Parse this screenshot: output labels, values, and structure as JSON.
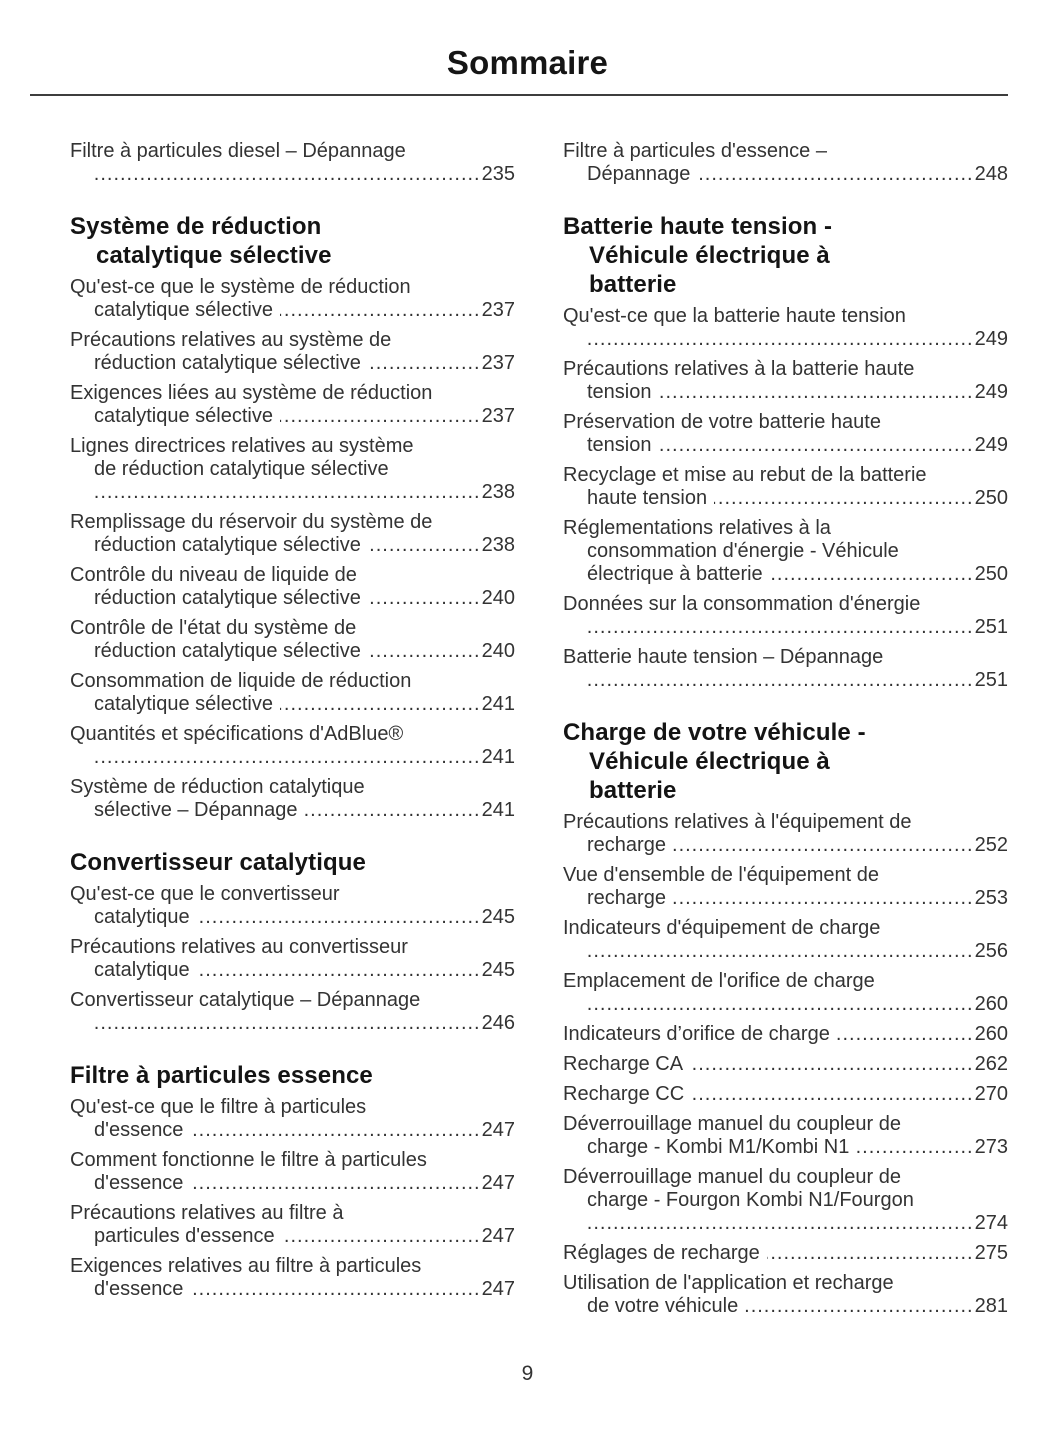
{
  "page": {
    "title": "Sommaire",
    "number": "9"
  },
  "toc": {
    "columns": [
      {
        "blocks": [
          {
            "type": "entry",
            "lines": [
              "Filtre à particules diesel – Dépannage",
              ""
            ],
            "page": "235"
          },
          {
            "type": "heading",
            "lines": [
              "Système de réduction",
              "catalytique sélective"
            ]
          },
          {
            "type": "entry",
            "lines": [
              "Qu'est-ce que le système de réduction",
              "catalytique sélective"
            ],
            "page": "237"
          },
          {
            "type": "entry",
            "lines": [
              "Précautions relatives au système de",
              "réduction catalytique sélective"
            ],
            "page": "237"
          },
          {
            "type": "entry",
            "lines": [
              "Exigences liées au système de réduction",
              "catalytique sélective"
            ],
            "page": "237"
          },
          {
            "type": "entry",
            "lines": [
              "Lignes directrices relatives au système",
              "de réduction catalytique sélective",
              ""
            ],
            "page": "238"
          },
          {
            "type": "entry",
            "lines": [
              "Remplissage du réservoir du système de",
              "réduction catalytique sélective"
            ],
            "page": "238"
          },
          {
            "type": "entry",
            "lines": [
              "Contrôle du niveau de liquide de",
              "réduction catalytique sélective"
            ],
            "page": "240"
          },
          {
            "type": "entry",
            "lines": [
              "Contrôle de l'état du système de",
              "réduction catalytique sélective"
            ],
            "page": "240"
          },
          {
            "type": "entry",
            "lines": [
              "Consommation de liquide de réduction",
              "catalytique sélective"
            ],
            "page": "241"
          },
          {
            "type": "entry",
            "lines": [
              "Quantités et spécifications d'AdBlue®",
              ""
            ],
            "page": "241"
          },
          {
            "type": "entry",
            "lines": [
              "Système de réduction catalytique",
              "sélective – Dépannage"
            ],
            "page": "241"
          },
          {
            "type": "heading",
            "lines": [
              "Convertisseur catalytique"
            ]
          },
          {
            "type": "entry",
            "lines": [
              "Qu'est-ce que le convertisseur",
              "catalytique"
            ],
            "page": "245"
          },
          {
            "type": "entry",
            "lines": [
              "Précautions relatives au convertisseur",
              "catalytique"
            ],
            "page": "245"
          },
          {
            "type": "entry",
            "lines": [
              "Convertisseur catalytique – Dépannage",
              ""
            ],
            "page": "246"
          },
          {
            "type": "heading",
            "lines": [
              "Filtre à particules essence"
            ]
          },
          {
            "type": "entry",
            "lines": [
              "Qu'est-ce que le filtre à particules",
              "d'essence"
            ],
            "page": "247"
          },
          {
            "type": "entry",
            "lines": [
              "Comment fonctionne le filtre à particules",
              "d'essence"
            ],
            "page": "247"
          },
          {
            "type": "entry",
            "lines": [
              "Précautions relatives au filtre à",
              "particules d'essence"
            ],
            "page": "247"
          },
          {
            "type": "entry",
            "lines": [
              "Exigences relatives au filtre à particules",
              "d'essence"
            ],
            "page": "247"
          }
        ]
      },
      {
        "blocks": [
          {
            "type": "entry",
            "lines": [
              "Filtre à particules d'essence –",
              "Dépannage"
            ],
            "page": "248"
          },
          {
            "type": "heading",
            "lines": [
              "Batterie haute tension -",
              "Véhicule électrique à",
              "batterie"
            ]
          },
          {
            "type": "entry",
            "lines": [
              "Qu'est-ce que la batterie haute tension",
              ""
            ],
            "page": "249"
          },
          {
            "type": "entry",
            "lines": [
              "Précautions relatives à la batterie haute",
              "tension"
            ],
            "page": "249"
          },
          {
            "type": "entry",
            "lines": [
              "Préservation de votre batterie haute",
              "tension"
            ],
            "page": "249"
          },
          {
            "type": "entry",
            "lines": [
              "Recyclage et mise au rebut de la batterie",
              "haute tension"
            ],
            "page": "250"
          },
          {
            "type": "entry",
            "lines": [
              "Réglementations relatives à la",
              "consommation d'énergie - Véhicule",
              "électrique à batterie"
            ],
            "page": "250"
          },
          {
            "type": "entry",
            "lines": [
              "Données sur la consommation d'énergie",
              ""
            ],
            "page": "251"
          },
          {
            "type": "entry",
            "lines": [
              "Batterie haute tension – Dépannage",
              ""
            ],
            "page": "251"
          },
          {
            "type": "heading",
            "lines": [
              "Charge de votre véhicule -",
              "Véhicule électrique à",
              "batterie"
            ]
          },
          {
            "type": "entry",
            "lines": [
              "Précautions relatives à l'équipement de",
              "recharge"
            ],
            "page": "252"
          },
          {
            "type": "entry",
            "lines": [
              "Vue d'ensemble de l'équipement de",
              "recharge"
            ],
            "page": "253"
          },
          {
            "type": "entry",
            "lines": [
              "Indicateurs d'équipement de charge",
              ""
            ],
            "page": "256"
          },
          {
            "type": "entry",
            "lines": [
              "Emplacement de l'orifice de charge",
              ""
            ],
            "page": "260"
          },
          {
            "type": "entry",
            "lines": [
              "Indicateurs d’orifice de charge"
            ],
            "page": "260"
          },
          {
            "type": "entry",
            "lines": [
              "Recharge CA"
            ],
            "page": "262"
          },
          {
            "type": "entry",
            "lines": [
              "Recharge CC"
            ],
            "page": "270"
          },
          {
            "type": "entry",
            "lines": [
              "Déverrouillage manuel du coupleur de",
              "charge - Kombi M1/Kombi N1"
            ],
            "page": "273"
          },
          {
            "type": "entry",
            "lines": [
              "Déverrouillage manuel du coupleur de",
              "charge - Fourgon Kombi N1/Fourgon",
              ""
            ],
            "page": "274"
          },
          {
            "type": "entry",
            "lines": [
              "Réglages de recharge"
            ],
            "page": "275"
          },
          {
            "type": "entry",
            "lines": [
              "Utilisation de l'application et recharge",
              "de votre véhicule"
            ],
            "page": "281"
          }
        ]
      }
    ]
  }
}
